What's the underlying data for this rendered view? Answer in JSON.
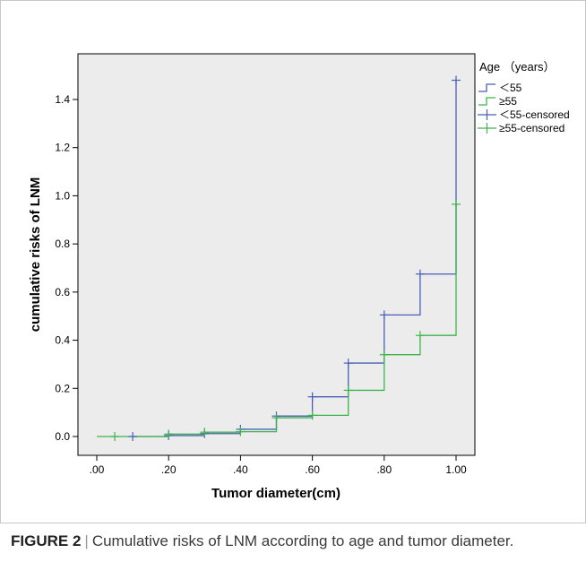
{
  "chart_data": {
    "type": "line",
    "subtype": "step",
    "xlabel": "Tumor diameter(cm)",
    "ylabel": "cumulative risks of LNM",
    "xlim": [
      0,
      1.05
    ],
    "ylim": [
      -0.07,
      1.6
    ],
    "x_ticks": [
      0,
      0.2,
      0.4,
      0.6,
      0.8,
      1.0
    ],
    "x_tick_labels": [
      ".00",
      ".20",
      ".40",
      ".60",
      ".80",
      "1.00"
    ],
    "y_ticks": [
      0,
      0.2,
      0.4,
      0.6,
      0.8,
      1.0,
      1.2,
      1.4
    ],
    "y_tick_labels": [
      "0.0",
      "0.2",
      "0.4",
      "0.6",
      "0.8",
      "1.0",
      "1.2",
      "1.4"
    ],
    "grid": false,
    "legend_title": "Age （years）",
    "legend_position": "right-outside-top",
    "series": [
      {
        "name": "＜55",
        "color": "#4a5fb5",
        "steps": [
          [
            0.1,
            0.0
          ],
          [
            0.2,
            0.004
          ],
          [
            0.3,
            0.012
          ],
          [
            0.4,
            0.03
          ],
          [
            0.5,
            0.085
          ],
          [
            0.6,
            0.165
          ],
          [
            0.7,
            0.305
          ],
          [
            0.8,
            0.505
          ],
          [
            0.9,
            0.675
          ],
          [
            1.0,
            1.48
          ]
        ]
      },
      {
        "name": "≥55",
        "color": "#3cb54a",
        "steps": [
          [
            0.0,
            0.0
          ],
          [
            0.2,
            0.01
          ],
          [
            0.3,
            0.018
          ],
          [
            0.4,
            0.02
          ],
          [
            0.5,
            0.078
          ],
          [
            0.6,
            0.088
          ],
          [
            0.7,
            0.192
          ],
          [
            0.8,
            0.34
          ],
          [
            0.9,
            0.42
          ],
          [
            1.0,
            0.965
          ]
        ]
      }
    ],
    "censored": [
      {
        "name": "＜55-censored",
        "color": "#4a5fb5",
        "points": [
          [
            0.1,
            0.0
          ],
          [
            0.2,
            0.004
          ],
          [
            0.3,
            0.012
          ],
          [
            0.4,
            0.03
          ],
          [
            0.5,
            0.085
          ],
          [
            0.6,
            0.165
          ],
          [
            0.7,
            0.305
          ],
          [
            0.8,
            0.505
          ],
          [
            0.9,
            0.675
          ],
          [
            1.0,
            1.48
          ]
        ]
      },
      {
        "name": "≥55-censored",
        "color": "#3cb54a",
        "points": [
          [
            0.05,
            0.0
          ],
          [
            0.2,
            0.01
          ],
          [
            0.3,
            0.018
          ],
          [
            0.4,
            0.02
          ],
          [
            0.5,
            0.078
          ],
          [
            0.6,
            0.088
          ],
          [
            0.7,
            0.192
          ],
          [
            0.8,
            0.34
          ],
          [
            0.9,
            0.42
          ],
          [
            1.0,
            0.965
          ]
        ]
      }
    ]
  },
  "caption": {
    "label": "FIGURE 2",
    "separator": "|",
    "text": "Cumulative risks of LNM according to age and tumor diameter."
  },
  "colors": {
    "plot_background": "#ececec",
    "frame_border": "#c8c8c8",
    "axis": "#000000"
  }
}
